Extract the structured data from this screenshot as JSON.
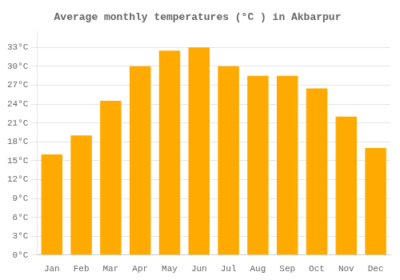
{
  "chart_data": {
    "type": "bar",
    "title": "Average monthly temperatures (°C ) in Akbarpur",
    "categories": [
      "Jan",
      "Feb",
      "Mar",
      "Apr",
      "May",
      "Jun",
      "Jul",
      "Aug",
      "Sep",
      "Oct",
      "Nov",
      "Dec"
    ],
    "values": [
      16,
      19,
      24.5,
      30,
      32.5,
      33,
      30,
      28.5,
      28.5,
      26.5,
      22,
      17
    ],
    "color": "#FFAA00",
    "ylim": [
      0,
      35.5
    ],
    "yticks": [
      {
        "value": 0,
        "label": "0°C"
      },
      {
        "value": 3,
        "label": "3°C"
      },
      {
        "value": 6,
        "label": "6°C"
      },
      {
        "value": 9,
        "label": "9°C"
      },
      {
        "value": 12,
        "label": "12°C"
      },
      {
        "value": 15,
        "label": "15°C"
      },
      {
        "value": 18,
        "label": "18°C"
      },
      {
        "value": 21,
        "label": "21°C"
      },
      {
        "value": 24,
        "label": "24°C"
      },
      {
        "value": 27,
        "label": "27°C"
      },
      {
        "value": 30,
        "label": "30°C"
      },
      {
        "value": 33,
        "label": "33°C"
      }
    ],
    "grid": true
  }
}
